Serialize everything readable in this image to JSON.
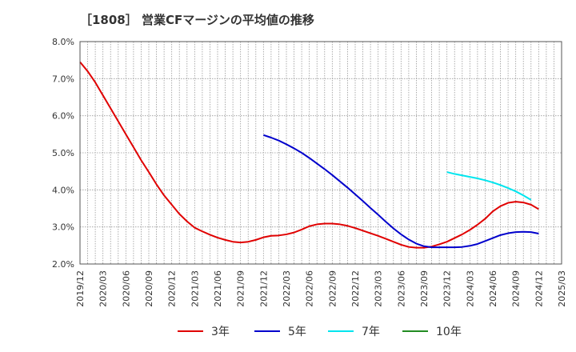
{
  "chart_data": {
    "type": "line",
    "title": "［1808］ 営業CFマージンの平均値の推移",
    "xlabel": "",
    "ylabel": "",
    "ylim": [
      0.02,
      0.08
    ],
    "yticks": [
      "2.0%",
      "3.0%",
      "4.0%",
      "5.0%",
      "6.0%",
      "7.0%",
      "8.0%"
    ],
    "x_range": [
      "2019/12",
      "2025/03"
    ],
    "xticks": [
      "2019/12",
      "2020/03",
      "2020/06",
      "2020/09",
      "2020/12",
      "2021/03",
      "2021/06",
      "2021/09",
      "2021/12",
      "2022/03",
      "2022/06",
      "2022/09",
      "2022/12",
      "2023/03",
      "2023/06",
      "2023/09",
      "2023/12",
      "2024/03",
      "2024/06",
      "2024/09",
      "2024/12",
      "2025/03"
    ],
    "grid": true,
    "legend_position": "bottom",
    "series": [
      {
        "name": "3年",
        "color": "#e00000",
        "points": [
          [
            "2019/12",
            0.0745
          ],
          [
            "2020/01",
            0.072
          ],
          [
            "2020/02",
            0.069
          ],
          [
            "2020/03",
            0.0655
          ],
          [
            "2020/04",
            0.062
          ],
          [
            "2020/05",
            0.0585
          ],
          [
            "2020/06",
            0.055
          ],
          [
            "2020/07",
            0.0515
          ],
          [
            "2020/08",
            0.048
          ],
          [
            "2020/09",
            0.0448
          ],
          [
            "2020/10",
            0.0415
          ],
          [
            "2020/11",
            0.0385
          ],
          [
            "2020/12",
            0.036
          ],
          [
            "2021/01",
            0.0335
          ],
          [
            "2021/02",
            0.0315
          ],
          [
            "2021/03",
            0.0298
          ],
          [
            "2021/04",
            0.0288
          ],
          [
            "2021/05",
            0.0279
          ],
          [
            "2021/06",
            0.0271
          ],
          [
            "2021/07",
            0.0265
          ],
          [
            "2021/08",
            0.026
          ],
          [
            "2021/09",
            0.0258
          ],
          [
            "2021/10",
            0.026
          ],
          [
            "2021/11",
            0.0265
          ],
          [
            "2021/12",
            0.0272
          ],
          [
            "2022/01",
            0.0276
          ],
          [
            "2022/02",
            0.0277
          ],
          [
            "2022/03",
            0.028
          ],
          [
            "2022/04",
            0.0285
          ],
          [
            "2022/05",
            0.0293
          ],
          [
            "2022/06",
            0.0302
          ],
          [
            "2022/07",
            0.0307
          ],
          [
            "2022/08",
            0.0309
          ],
          [
            "2022/09",
            0.0309
          ],
          [
            "2022/10",
            0.0307
          ],
          [
            "2022/11",
            0.0303
          ],
          [
            "2022/12",
            0.0297
          ],
          [
            "2023/01",
            0.029
          ],
          [
            "2023/02",
            0.0283
          ],
          [
            "2023/03",
            0.0276
          ],
          [
            "2023/04",
            0.0268
          ],
          [
            "2023/05",
            0.026
          ],
          [
            "2023/06",
            0.0252
          ],
          [
            "2023/07",
            0.0246
          ],
          [
            "2023/08",
            0.0244
          ],
          [
            "2023/09",
            0.0244
          ],
          [
            "2023/10",
            0.0247
          ],
          [
            "2023/11",
            0.0253
          ],
          [
            "2023/12",
            0.026
          ],
          [
            "2024/01",
            0.027
          ],
          [
            "2024/02",
            0.028
          ],
          [
            "2024/03",
            0.0292
          ],
          [
            "2024/04",
            0.0306
          ],
          [
            "2024/05",
            0.0322
          ],
          [
            "2024/06",
            0.0342
          ],
          [
            "2024/07",
            0.0356
          ],
          [
            "2024/08",
            0.0365
          ],
          [
            "2024/09",
            0.0368
          ],
          [
            "2024/10",
            0.0366
          ],
          [
            "2024/11",
            0.036
          ],
          [
            "2024/12",
            0.0348
          ]
        ]
      },
      {
        "name": "5年",
        "color": "#0000cc",
        "points": [
          [
            "2021/12",
            0.0548
          ],
          [
            "2022/01",
            0.0541
          ],
          [
            "2022/02",
            0.0533
          ],
          [
            "2022/03",
            0.0523
          ],
          [
            "2022/04",
            0.0512
          ],
          [
            "2022/05",
            0.05
          ],
          [
            "2022/06",
            0.0486
          ],
          [
            "2022/07",
            0.0471
          ],
          [
            "2022/08",
            0.0456
          ],
          [
            "2022/09",
            0.044
          ],
          [
            "2022/10",
            0.0423
          ],
          [
            "2022/11",
            0.0406
          ],
          [
            "2022/12",
            0.0388
          ],
          [
            "2023/01",
            0.037
          ],
          [
            "2023/02",
            0.0351
          ],
          [
            "2023/03",
            0.0333
          ],
          [
            "2023/04",
            0.0314
          ],
          [
            "2023/05",
            0.0296
          ],
          [
            "2023/06",
            0.028
          ],
          [
            "2023/07",
            0.0266
          ],
          [
            "2023/08",
            0.0255
          ],
          [
            "2023/09",
            0.0248
          ],
          [
            "2023/10",
            0.0245
          ],
          [
            "2023/11",
            0.0245
          ],
          [
            "2023/12",
            0.0245
          ],
          [
            "2024/01",
            0.0245
          ],
          [
            "2024/02",
            0.0246
          ],
          [
            "2024/03",
            0.0249
          ],
          [
            "2024/04",
            0.0254
          ],
          [
            "2024/05",
            0.0262
          ],
          [
            "2024/06",
            0.027
          ],
          [
            "2024/07",
            0.0278
          ],
          [
            "2024/08",
            0.0283
          ],
          [
            "2024/09",
            0.0286
          ],
          [
            "2024/10",
            0.0287
          ],
          [
            "2024/11",
            0.0286
          ],
          [
            "2024/12",
            0.0282
          ]
        ]
      },
      {
        "name": "7年",
        "color": "#00e5ee",
        "points": [
          [
            "2023/12",
            0.0448
          ],
          [
            "2024/01",
            0.0443
          ],
          [
            "2024/02",
            0.0439
          ],
          [
            "2024/03",
            0.0435
          ],
          [
            "2024/04",
            0.0431
          ],
          [
            "2024/05",
            0.0426
          ],
          [
            "2024/06",
            0.042
          ],
          [
            "2024/07",
            0.0413
          ],
          [
            "2024/08",
            0.0405
          ],
          [
            "2024/09",
            0.0396
          ],
          [
            "2024/10",
            0.0385
          ],
          [
            "2024/11",
            0.0373
          ]
        ]
      },
      {
        "name": "10年",
        "color": "#228b22",
        "points": []
      }
    ]
  }
}
